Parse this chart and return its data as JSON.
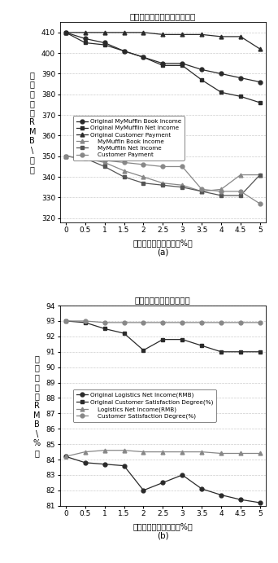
{
  "title1": "松饼供应公司和客户价值主张",
  "title2": "物流公司和客户价值主张",
  "xlabel": "非正常状况的可能性（%）",
  "ylabel1_chars": [
    "价",
    "值",
    "主",
    "张",
    "（",
    "R",
    "M",
    "B",
    "\\",
    "￥",
    "）"
  ],
  "ylabel2_chars": [
    "价",
    "值",
    "主",
    "张",
    "（",
    "R",
    "M",
    "B",
    "\\",
    "%",
    "）"
  ],
  "label_a": "(a)",
  "label_b": "(b)",
  "x": [
    0,
    0.5,
    1,
    1.5,
    2,
    2.5,
    3,
    3.5,
    4,
    4.5,
    5
  ],
  "plot1_series": {
    "orig_book": [
      410,
      407,
      405,
      401,
      398,
      395,
      395,
      392,
      390,
      388,
      386
    ],
    "orig_net": [
      410,
      405,
      404,
      401,
      398,
      394,
      394,
      387,
      381,
      379,
      376
    ],
    "orig_cust": [
      410,
      410,
      410,
      410,
      410,
      409,
      409,
      409,
      408,
      408,
      402
    ],
    "mymuf_book": [
      350,
      349,
      347,
      343,
      340,
      337,
      336,
      333,
      334,
      341,
      341
    ],
    "mymuf_net": [
      350,
      349,
      345,
      340,
      337,
      336,
      335,
      333,
      331,
      331,
      341
    ],
    "cust_pay": [
      350,
      349,
      348,
      347,
      346,
      345,
      345,
      334,
      333,
      333,
      327
    ]
  },
  "plot2_series": {
    "orig_log_net": [
      84.2,
      83.8,
      83.7,
      83.6,
      82.0,
      82.5,
      83.0,
      82.1,
      81.7,
      81.4,
      81.2
    ],
    "orig_cust_sat": [
      93.0,
      92.9,
      92.5,
      92.2,
      91.1,
      91.8,
      91.8,
      91.4,
      91.0,
      91.0,
      91.0
    ],
    "log_net": [
      84.2,
      84.5,
      84.6,
      84.6,
      84.5,
      84.5,
      84.5,
      84.5,
      84.4,
      84.4,
      84.4
    ],
    "cust_sat": [
      93.0,
      93.0,
      92.9,
      92.9,
      92.9,
      92.9,
      92.9,
      92.9,
      92.9,
      92.9,
      92.9
    ]
  },
  "legend1_labels": [
    "Original MyMuffin Book Income",
    "Original MyMufflin Net Income",
    "Original Customer Payment",
    "    MyMuffin Book Income",
    "    MyMufflin Net Income",
    "    Customer Payment"
  ],
  "legend2_labels": [
    "Original Logistics Net Income(RMB)",
    "Original Customer Satisfaction Degree(%)",
    "    Logistics Net Income(RMB)",
    "    Customer Satisfaction Degree(%)"
  ],
  "ylim1": [
    318,
    415
  ],
  "ylim2": [
    81,
    94
  ],
  "yticks1": [
    320,
    330,
    340,
    350,
    360,
    370,
    380,
    390,
    400,
    410
  ],
  "yticks2": [
    81,
    82,
    83,
    84,
    85,
    86,
    87,
    88,
    89,
    90,
    91,
    92,
    93,
    94
  ],
  "colors": {
    "dark_circle": "#2a2a2a",
    "dark_square": "#2a2a2a",
    "dark_triangle": "#2a2a2a",
    "light_triangle": "#888888",
    "light_square": "#555555",
    "light_circle": "#888888"
  }
}
